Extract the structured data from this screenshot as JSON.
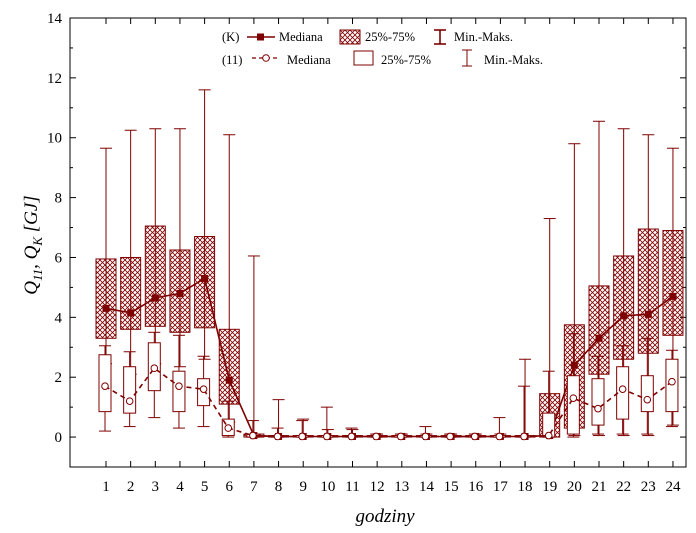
{
  "chart_data": {
    "type": "box",
    "xlabel": "godziny",
    "ylabel": "Q11, QK [GJ]",
    "ylabel_parts": {
      "q": "Q",
      "sub1": "11",
      "sep": ", ",
      "q2": "Q",
      "sub2": "K",
      "unit": " [GJ]"
    },
    "categories": [
      "1",
      "2",
      "3",
      "4",
      "5",
      "6",
      "7",
      "8",
      "9",
      "10",
      "11",
      "12",
      "13",
      "14",
      "15",
      "16",
      "17",
      "18",
      "19",
      "20",
      "21",
      "22",
      "23",
      "24"
    ],
    "ylim": [
      -1,
      14
    ],
    "yticks": [
      0,
      2,
      4,
      6,
      8,
      10,
      12,
      14
    ],
    "grid": false,
    "legend_position": "top-center",
    "colors": {
      "K": "#7f0000",
      "11": "#7f0000",
      "axis": "#000000"
    },
    "legend": {
      "row1": {
        "tag": "(K)",
        "median": "Mediana",
        "box": "25%-75%",
        "range": "Min.-Maks."
      },
      "row2": {
        "tag": "(11)",
        "median": "Mediana",
        "box": "25%-75%",
        "range": "Min.-Maks."
      }
    },
    "series": [
      {
        "name": "K",
        "style": "hatched",
        "median": [
          4.3,
          4.15,
          4.65,
          4.8,
          5.3,
          1.9,
          0.05,
          0.02,
          0.02,
          0.02,
          0.02,
          0.02,
          0.02,
          0.02,
          0.02,
          0.02,
          0.02,
          0.02,
          0.05,
          2.4,
          3.3,
          4.05,
          4.1,
          4.7
        ],
        "q1": [
          3.3,
          3.6,
          3.7,
          3.5,
          3.65,
          1.1,
          0.0,
          0.0,
          0.0,
          0.0,
          0.0,
          0.0,
          0.0,
          0.0,
          0.0,
          0.0,
          0.0,
          0.0,
          0.0,
          0.3,
          2.1,
          2.6,
          2.8,
          3.4
        ],
        "q3": [
          5.95,
          6.0,
          7.05,
          6.25,
          6.7,
          3.6,
          0.1,
          0.05,
          0.05,
          0.05,
          0.05,
          0.05,
          0.05,
          0.05,
          0.05,
          0.05,
          0.05,
          0.05,
          1.45,
          3.75,
          5.05,
          6.05,
          6.95,
          6.9
        ],
        "min": [
          2.45,
          2.1,
          2.45,
          2.35,
          2.6,
          0.5,
          0.0,
          0.0,
          0.0,
          0.0,
          0.0,
          0.0,
          0.0,
          0.0,
          0.0,
          0.0,
          0.0,
          0.0,
          0.0,
          0.05,
          0.05,
          0.05,
          0.05,
          0.4
        ],
        "max": [
          9.65,
          10.25,
          10.3,
          10.3,
          11.6,
          10.1,
          6.05,
          1.25,
          0.6,
          0.25,
          0.25,
          0.1,
          0.1,
          0.1,
          0.1,
          0.1,
          0.1,
          2.6,
          7.3,
          9.8,
          10.55,
          10.3,
          10.1,
          9.65
        ]
      },
      {
        "name": "11",
        "style": "open",
        "median": [
          1.7,
          1.2,
          2.3,
          1.7,
          1.6,
          0.3,
          0.05,
          0.02,
          0.02,
          0.02,
          0.02,
          0.02,
          0.02,
          0.02,
          0.02,
          0.02,
          0.02,
          0.02,
          0.05,
          1.3,
          0.95,
          1.6,
          1.25,
          1.85
        ],
        "q1": [
          0.85,
          0.8,
          1.55,
          0.85,
          1.05,
          0.05,
          0.0,
          0.0,
          0.0,
          0.0,
          0.0,
          0.0,
          0.0,
          0.0,
          0.0,
          0.0,
          0.0,
          0.0,
          0.0,
          0.1,
          0.4,
          0.6,
          0.85,
          0.85
        ],
        "q3": [
          2.75,
          2.35,
          3.15,
          2.2,
          1.95,
          0.6,
          0.1,
          0.05,
          0.05,
          0.05,
          0.05,
          0.05,
          0.05,
          0.05,
          0.05,
          0.05,
          0.05,
          0.05,
          0.8,
          2.05,
          1.95,
          2.35,
          2.05,
          2.6
        ],
        "min": [
          0.2,
          0.35,
          0.65,
          0.3,
          0.35,
          0.0,
          0.0,
          0.0,
          0.0,
          0.0,
          0.0,
          0.0,
          0.0,
          0.0,
          0.0,
          0.0,
          0.0,
          0.0,
          0.0,
          0.0,
          0.1,
          0.1,
          0.1,
          0.35
        ],
        "max": [
          3.05,
          2.85,
          3.5,
          3.4,
          2.7,
          1.2,
          0.55,
          0.3,
          0.55,
          1.0,
          0.3,
          0.1,
          0.1,
          0.35,
          0.1,
          0.1,
          0.65,
          1.7,
          2.2,
          3.45,
          2.7,
          3.05,
          3.3,
          2.9
        ]
      }
    ]
  }
}
